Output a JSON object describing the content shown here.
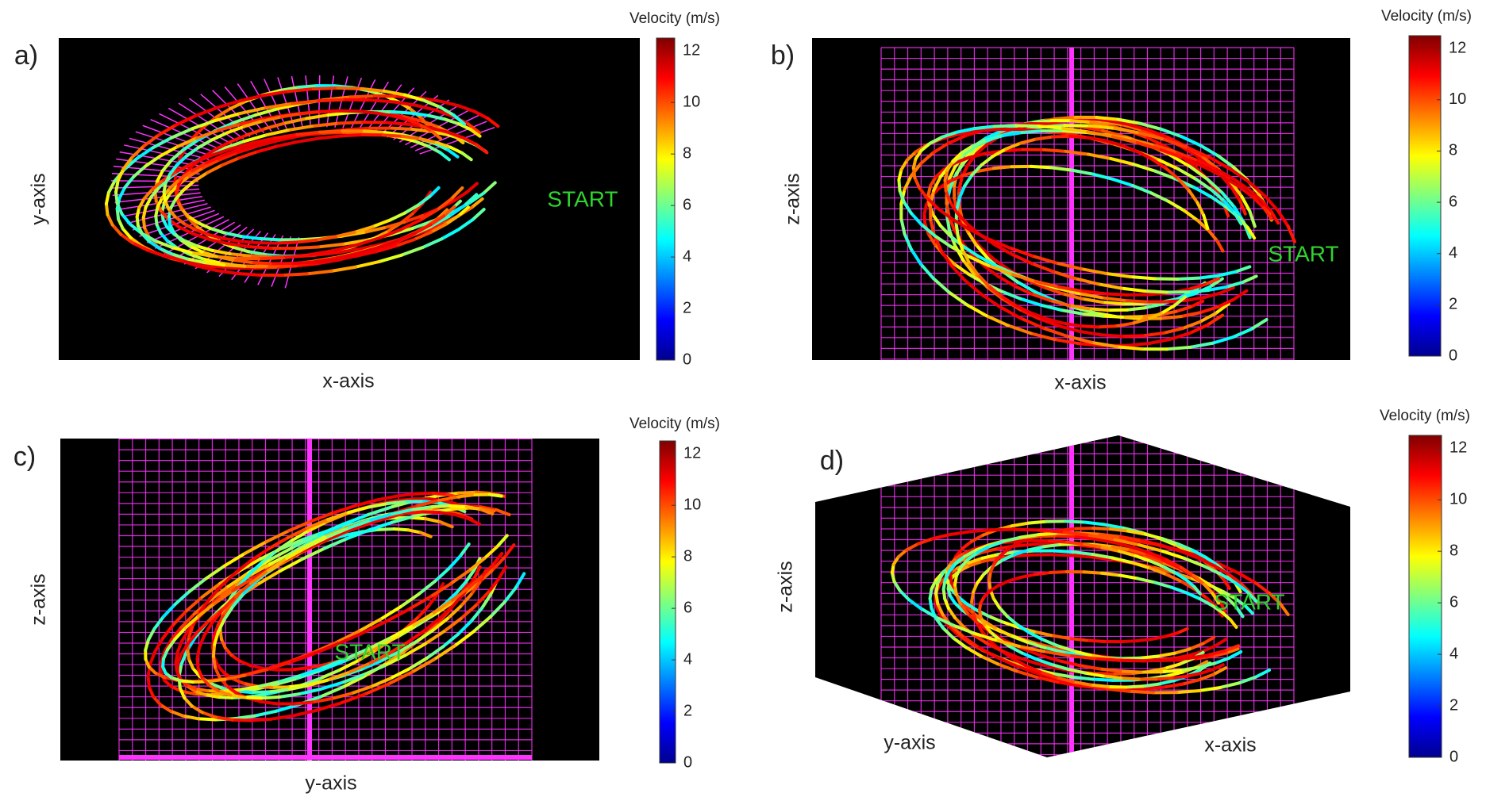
{
  "panels": [
    {
      "label": "a)",
      "horizontal_axis_label": "x-axis",
      "vertical_axis_label": "y-axis",
      "annotation": "START",
      "colorbar": {
        "title": "Velocity (m/s)",
        "lim": [
          0,
          12.5
        ],
        "ticks": [
          0,
          2,
          4,
          6,
          8,
          10,
          12
        ]
      }
    },
    {
      "label": "b)",
      "horizontal_axis_label": "x-axis",
      "vertical_axis_label": "z-axis",
      "annotation": "START",
      "colorbar": {
        "title": "Velocity (m/s)",
        "lim": [
          0,
          12.5
        ],
        "ticks": [
          0,
          2,
          4,
          6,
          8,
          10,
          12
        ]
      }
    },
    {
      "label": "c)",
      "horizontal_axis_label": "y-axis",
      "vertical_axis_label": "z-axis",
      "annotation": "START",
      "colorbar": {
        "title": "Velocity (m/s)",
        "lim": [
          0,
          12.5
        ],
        "ticks": [
          0,
          2,
          4,
          6,
          8,
          10,
          12
        ]
      }
    },
    {
      "label": "d)",
      "horizontal_axis_label": "y-axis",
      "second_horizontal_axis_label": "x-axis",
      "vertical_axis_label": "z-axis",
      "annotation": "START",
      "colorbar": {
        "title": "Velocity (m/s)",
        "lim": [
          0,
          12.5
        ],
        "ticks": [
          0,
          2,
          4,
          6,
          8,
          10,
          12
        ]
      }
    }
  ]
}
